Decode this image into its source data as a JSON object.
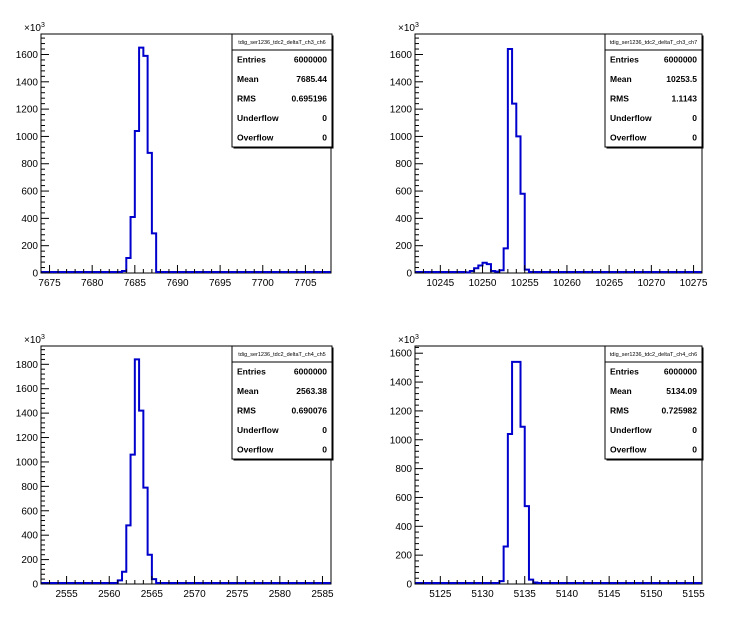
{
  "chart_data": [
    {
      "type": "bar",
      "histogram": true,
      "stat_title": "tdig_ser1236_tdc2_deltaT_ch3_ch6",
      "y_multiplier": "×10",
      "y_exponent": "3",
      "xlim": [
        7674,
        7708
      ],
      "ylim": [
        0,
        1750
      ],
      "xticks": [
        7675,
        7680,
        7685,
        7690,
        7695,
        7700,
        7705
      ],
      "yticks": [
        0,
        200,
        400,
        600,
        800,
        1000,
        1200,
        1400,
        1600
      ],
      "bin_width": 0.5,
      "x": [
        7683.5,
        7684.0,
        7684.5,
        7685.0,
        7685.5,
        7686.0,
        7686.5,
        7687.0
      ],
      "values": [
        15,
        110,
        410,
        1040,
        1650,
        1590,
        880,
        290
      ],
      "stats": [
        {
          "label": "Entries",
          "value": "6000000"
        },
        {
          "label": "Mean",
          "value": "7685.44"
        },
        {
          "label": "RMS",
          "value": "0.695196"
        },
        {
          "label": "Underflow",
          "value": "0"
        },
        {
          "label": "Overflow",
          "value": "0"
        }
      ]
    },
    {
      "type": "bar",
      "histogram": true,
      "stat_title": "tdig_ser1236_tdc2_deltaT_ch3_ch7",
      "y_multiplier": "×10",
      "y_exponent": "3",
      "xlim": [
        10242,
        10276
      ],
      "ylim": [
        0,
        1750
      ],
      "xticks": [
        10245,
        10250,
        10255,
        10260,
        10265,
        10270,
        10275
      ],
      "yticks": [
        0,
        200,
        400,
        600,
        800,
        1000,
        1200,
        1400,
        1600
      ],
      "bin_width": 0.5,
      "x": [
        10248.0,
        10248.5,
        10249.0,
        10249.5,
        10250.0,
        10250.5,
        10251.0,
        10251.5,
        10252.0,
        10252.5,
        10253.0,
        10253.5,
        10254.0,
        10254.5,
        10255.0
      ],
      "values": [
        5,
        15,
        35,
        55,
        75,
        65,
        15,
        10,
        20,
        180,
        1640,
        1240,
        1000,
        580,
        25
      ],
      "stats": [
        {
          "label": "Entries",
          "value": "6000000"
        },
        {
          "label": "Mean",
          "value": "10253.5"
        },
        {
          "label": "RMS",
          "value": "1.1143"
        },
        {
          "label": "Underflow",
          "value": "0"
        },
        {
          "label": "Overflow",
          "value": "0"
        }
      ]
    },
    {
      "type": "bar",
      "histogram": true,
      "stat_title": "tdig_ser1236_tdc2_deltaT_ch4_ch5",
      "y_multiplier": "×10",
      "y_exponent": "3",
      "xlim": [
        2552,
        2586
      ],
      "ylim": [
        0,
        1950
      ],
      "xticks": [
        2555,
        2560,
        2565,
        2570,
        2575,
        2580,
        2585
      ],
      "yticks": [
        0,
        200,
        400,
        600,
        800,
        1000,
        1200,
        1400,
        1600,
        1800
      ],
      "bin_width": 0.5,
      "x": [
        2561.0,
        2561.5,
        2562.0,
        2562.5,
        2563.0,
        2563.5,
        2564.0,
        2564.5,
        2565.0
      ],
      "values": [
        30,
        100,
        480,
        1060,
        1840,
        1420,
        790,
        240,
        40
      ],
      "stats": [
        {
          "label": "Entries",
          "value": "6000000"
        },
        {
          "label": "Mean",
          "value": "2563.38"
        },
        {
          "label": "RMS",
          "value": "0.690076"
        },
        {
          "label": "Underflow",
          "value": "0"
        },
        {
          "label": "Overflow",
          "value": "0"
        }
      ]
    },
    {
      "type": "bar",
      "histogram": true,
      "stat_title": "tdig_ser1236_tdc2_deltaT_ch4_ch6",
      "y_multiplier": "×10",
      "y_exponent": "3",
      "xlim": [
        5122,
        5156
      ],
      "ylim": [
        0,
        1650
      ],
      "xticks": [
        5125,
        5130,
        5135,
        5140,
        5145,
        5150,
        5155
      ],
      "yticks": [
        0,
        200,
        400,
        600,
        800,
        1000,
        1200,
        1400,
        1600
      ],
      "bin_width": 0.5,
      "x": [
        5132.0,
        5132.5,
        5133.0,
        5133.5,
        5134.0,
        5134.5,
        5135.0,
        5135.5,
        5136.0
      ],
      "values": [
        20,
        260,
        1040,
        1540,
        1540,
        1090,
        540,
        30,
        10
      ],
      "stats": [
        {
          "label": "Entries",
          "value": "6000000"
        },
        {
          "label": "Mean",
          "value": "5134.09"
        },
        {
          "label": "RMS",
          "value": "0.725982"
        },
        {
          "label": "Underflow",
          "value": "0"
        },
        {
          "label": "Overflow",
          "value": "0"
        }
      ]
    }
  ],
  "colors": {
    "histogram_line": "#0000cc",
    "axis": "#000000",
    "background": "#ffffff"
  }
}
